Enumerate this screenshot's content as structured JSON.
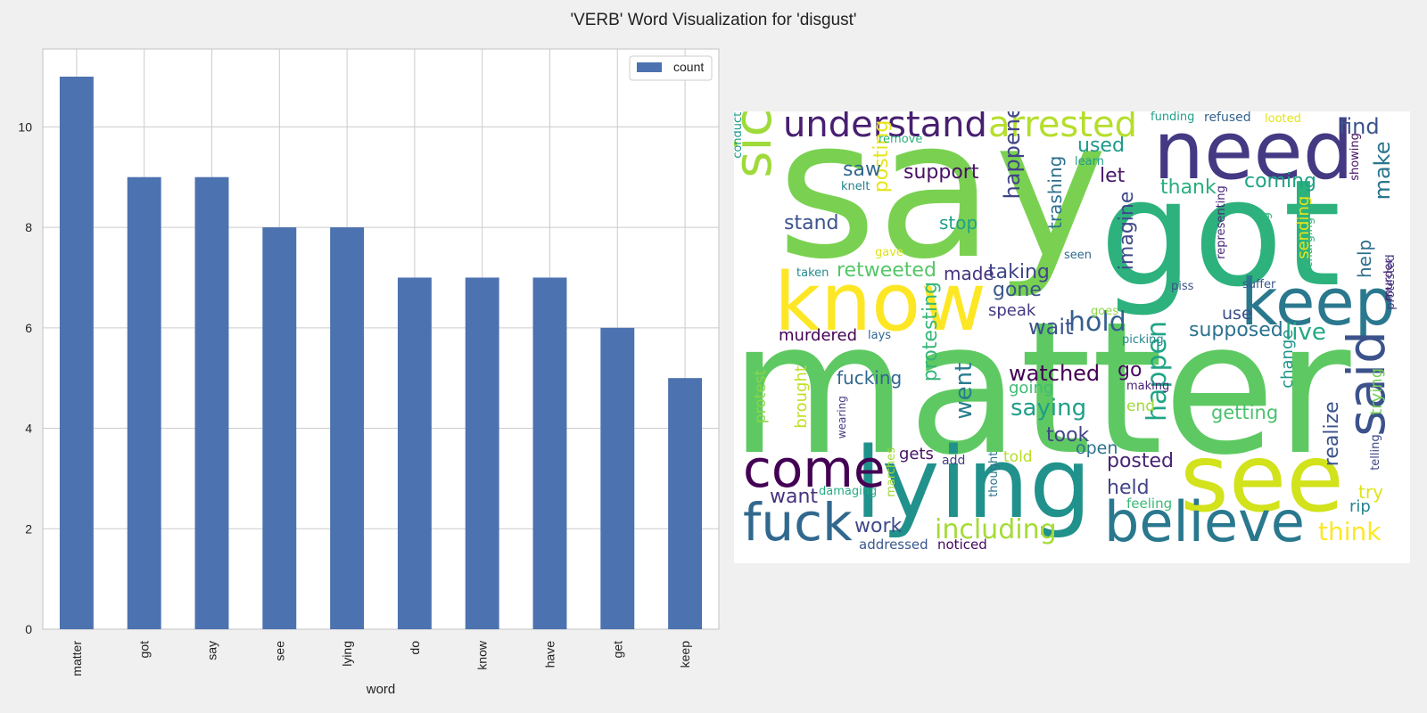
{
  "figure_title": "'VERB' Word Visualization for 'disgust'",
  "chart_data": [
    {
      "type": "bar",
      "title": "",
      "xlabel": "word",
      "ylabel": "",
      "categories": [
        "matter",
        "got",
        "say",
        "see",
        "lying",
        "do",
        "know",
        "have",
        "get",
        "keep"
      ],
      "series": [
        {
          "name": "count",
          "values": [
            11,
            9,
            9,
            8,
            8,
            7,
            7,
            7,
            6,
            5
          ],
          "color": "#4c72b0"
        }
      ],
      "ylim": [
        0,
        11.55
      ],
      "yticks": [
        0,
        2,
        4,
        6,
        8,
        10
      ],
      "grid": true,
      "legend": "top-right"
    },
    {
      "type": "wordcloud",
      "words": [
        {
          "text": "say",
          "color": "#7ad151"
        },
        {
          "text": "matter",
          "color": "#5ec962"
        },
        {
          "text": "got",
          "color": "#2db27d"
        },
        {
          "text": "need",
          "color": "#443983"
        },
        {
          "text": "know",
          "color": "#fde725"
        },
        {
          "text": "see",
          "color": "#d2e21b"
        },
        {
          "text": "lying",
          "color": "#21918c"
        },
        {
          "text": "keep",
          "color": "#2a788e"
        },
        {
          "text": "believe",
          "color": "#2a788e"
        },
        {
          "text": "come",
          "color": "#440154"
        },
        {
          "text": "fuck",
          "color": "#31688e"
        },
        {
          "text": "sickens",
          "color": "#9fda3a"
        },
        {
          "text": "said",
          "color": "#3b528b"
        },
        {
          "text": "understand",
          "color": "#481f70"
        },
        {
          "text": "arrested",
          "color": "#b5de2b"
        },
        {
          "text": "including",
          "color": "#a5db36"
        },
        {
          "text": "happen",
          "color": "#20a486"
        },
        {
          "text": "think",
          "color": "#fde725"
        },
        {
          "text": "hold",
          "color": "#355f8d"
        },
        {
          "text": "saying",
          "color": "#1f9e89"
        },
        {
          "text": "posted",
          "color": "#482475"
        },
        {
          "text": "held",
          "color": "#414487"
        },
        {
          "text": "want",
          "color": "#46327e"
        },
        {
          "text": "work",
          "color": "#3e4989"
        },
        {
          "text": "live",
          "color": "#22a884"
        },
        {
          "text": "supposed",
          "color": "#2c728e"
        },
        {
          "text": "went",
          "color": "#287c8e"
        },
        {
          "text": "protesting",
          "color": "#35b779"
        },
        {
          "text": "watched",
          "color": "#440154"
        },
        {
          "text": "wait",
          "color": "#3b528b"
        },
        {
          "text": "gone",
          "color": "#39568c"
        },
        {
          "text": "taking",
          "color": "#404688"
        },
        {
          "text": "happened",
          "color": "#414487"
        },
        {
          "text": "retweeted",
          "color": "#56c667"
        },
        {
          "text": "posting",
          "color": "#e5e419"
        },
        {
          "text": "stand",
          "color": "#3b528b"
        },
        {
          "text": "support",
          "color": "#471063"
        },
        {
          "text": "saw",
          "color": "#31688e"
        },
        {
          "text": "thank",
          "color": "#29af7f"
        },
        {
          "text": "coming",
          "color": "#20a386"
        },
        {
          "text": "make",
          "color": "#2a768e"
        },
        {
          "text": "find",
          "color": "#3b528b"
        },
        {
          "text": "let",
          "color": "#48186a"
        },
        {
          "text": "used",
          "color": "#1f9a8a"
        },
        {
          "text": "imagine",
          "color": "#3e4a89"
        },
        {
          "text": "trashing",
          "color": "#2d708e"
        },
        {
          "text": "stop",
          "color": "#1fa187"
        },
        {
          "text": "made",
          "color": "#46337f"
        },
        {
          "text": "speak",
          "color": "#453781"
        },
        {
          "text": "murdered",
          "color": "#440154"
        },
        {
          "text": "fucking",
          "color": "#31688e"
        },
        {
          "text": "go",
          "color": "#460b5e"
        },
        {
          "text": "going",
          "color": "#3fbc73"
        },
        {
          "text": "took",
          "color": "#414487"
        },
        {
          "text": "open",
          "color": "#2c728e"
        },
        {
          "text": "told",
          "color": "#b8de29"
        },
        {
          "text": "gets",
          "color": "#471365"
        },
        {
          "text": "add",
          "color": "#433e85"
        },
        {
          "text": "end",
          "color": "#a0da39"
        },
        {
          "text": "getting",
          "color": "#4ac16d"
        },
        {
          "text": "change",
          "color": "#1f958b"
        },
        {
          "text": "realize",
          "color": "#3b528b"
        },
        {
          "text": "try",
          "color": "#dde318"
        },
        {
          "text": "rip",
          "color": "#25848e"
        },
        {
          "text": "trying",
          "color": "#75d054"
        },
        {
          "text": "help",
          "color": "#2e6f8e"
        },
        {
          "text": "brought",
          "color": "#c2df23"
        },
        {
          "text": "protest",
          "color": "#8bd646"
        },
        {
          "text": "use",
          "color": "#3c4f8a"
        },
        {
          "text": "addressed",
          "color": "#38588c"
        },
        {
          "text": "noticed",
          "color": "#46085c"
        },
        {
          "text": "feeling",
          "color": "#3aba76"
        },
        {
          "text": "damaging",
          "color": "#25ac82"
        },
        {
          "text": "marches",
          "color": "#a2da37"
        },
        {
          "text": "thought",
          "color": "#2a768e"
        },
        {
          "text": "wearing",
          "color": "#443a83"
        },
        {
          "text": "telling",
          "color": "#3f4788"
        },
        {
          "text": "making",
          "color": "#482576"
        },
        {
          "text": "picking",
          "color": "#24868e"
        },
        {
          "text": "goes",
          "color": "#8fd744"
        },
        {
          "text": "lays",
          "color": "#31678e"
        },
        {
          "text": "piss",
          "color": "#3b528b"
        },
        {
          "text": "suffer",
          "color": "#39568c"
        },
        {
          "text": "representing",
          "color": "#482979"
        },
        {
          "text": "looting",
          "color": "#2fb47c"
        },
        {
          "text": "charging",
          "color": "#35b779"
        },
        {
          "text": "murder",
          "color": "#481b6d"
        },
        {
          "text": "protested",
          "color": "#433d84"
        },
        {
          "text": "showing",
          "color": "#481467"
        },
        {
          "text": "sending",
          "color": "#e7e419"
        },
        {
          "text": "seen",
          "color": "#306a8e"
        },
        {
          "text": "gave",
          "color": "#dfe318"
        },
        {
          "text": "taken",
          "color": "#23898e"
        },
        {
          "text": "learn",
          "color": "#1f9a8a"
        },
        {
          "text": "knelt",
          "color": "#26818e"
        },
        {
          "text": "remove",
          "color": "#2db27d"
        },
        {
          "text": "conducted",
          "color": "#1e9b8a"
        },
        {
          "text": "funding",
          "color": "#1fa088"
        },
        {
          "text": "refused",
          "color": "#33638d"
        },
        {
          "text": "looted",
          "color": "#e2e418"
        }
      ]
    }
  ]
}
